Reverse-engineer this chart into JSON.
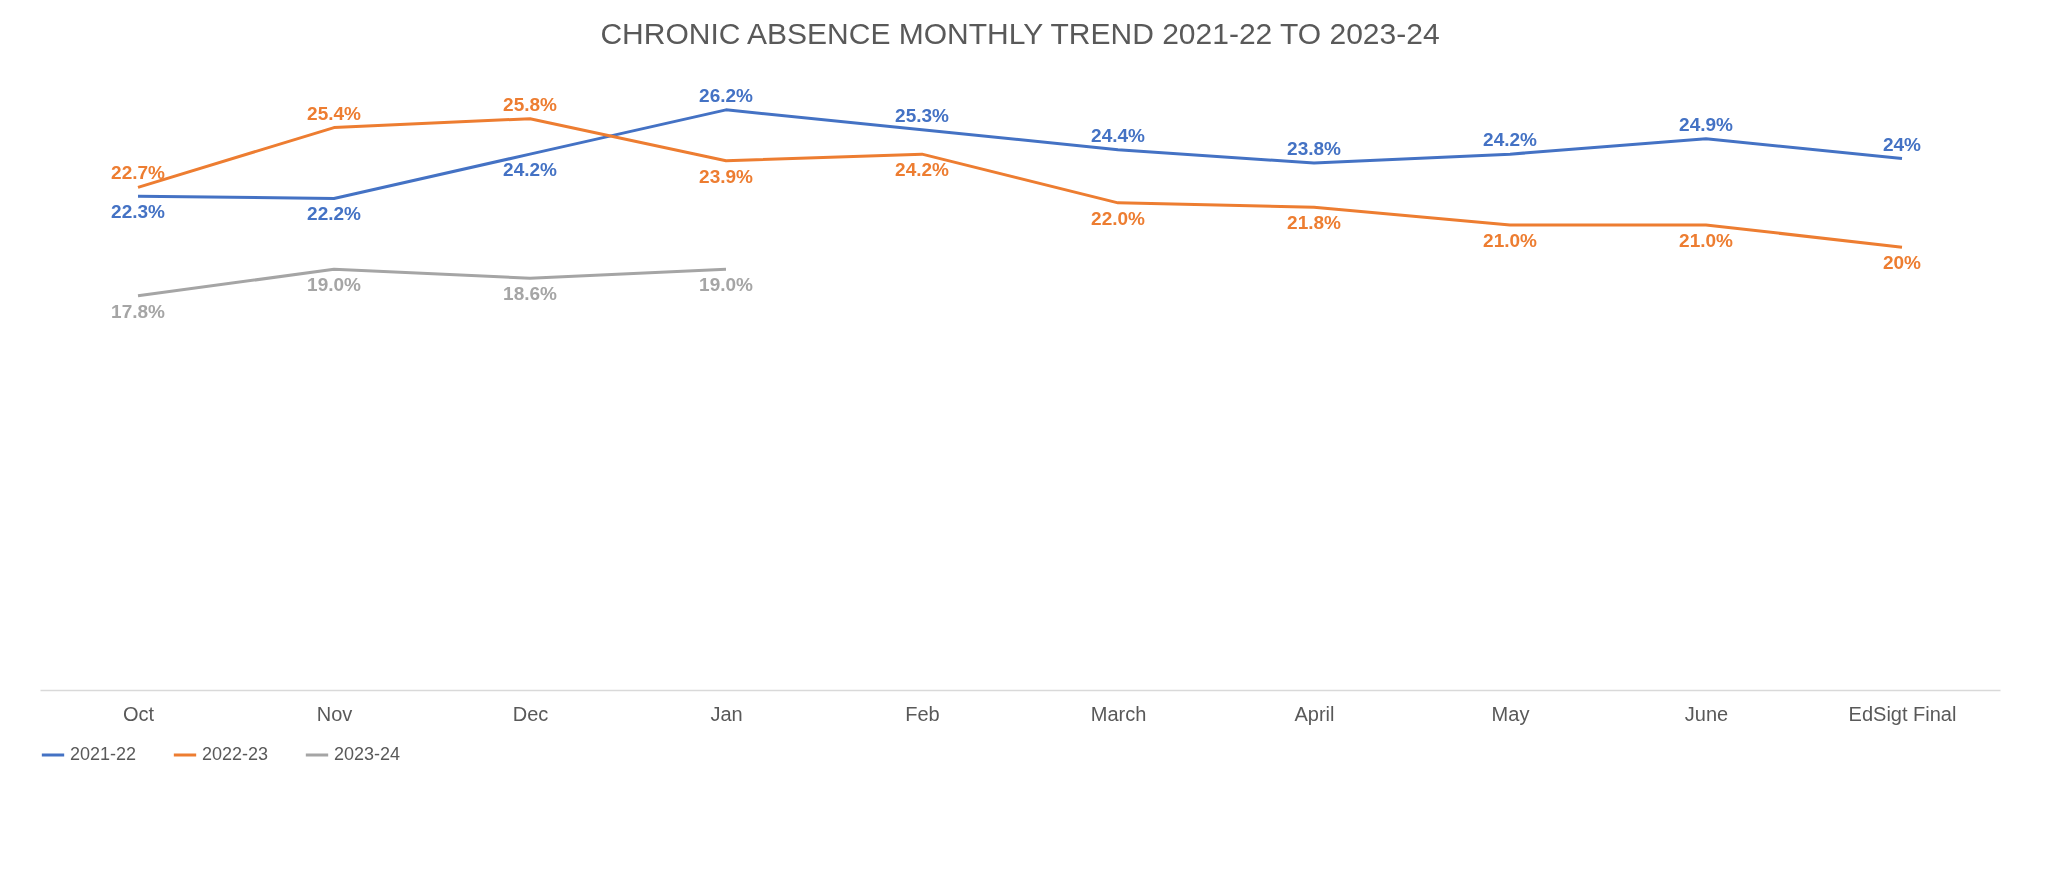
{
  "chart_data": {
    "type": "line",
    "title": "CHRONIC ABSENCE MONTHLY TREND 2021-22 TO 2023-24",
    "categories": [
      "Oct",
      "Nov",
      "Dec",
      "Jan",
      "Feb",
      "March",
      "April",
      "May",
      "June",
      "EdSigt Final"
    ],
    "series": [
      {
        "name": "2021-22",
        "color": "#4472c4",
        "values": [
          22.3,
          22.2,
          24.2,
          26.2,
          25.3,
          24.4,
          23.8,
          24.2,
          24.9,
          24
        ],
        "value_labels": [
          "22.3%",
          "22.2%",
          "24.2%",
          "26.2%",
          "25.3%",
          "24.4%",
          "23.8%",
          "24.2%",
          "24.9%",
          "24%"
        ]
      },
      {
        "name": "2022-23",
        "color": "#ed7d31",
        "values": [
          22.7,
          25.4,
          25.8,
          23.9,
          24.2,
          22.0,
          21.8,
          21.0,
          21.0,
          20
        ],
        "value_labels": [
          "22.7%",
          "25.4%",
          "25.8%",
          "23.9%",
          "24.2%",
          "22.0%",
          "21.8%",
          "21.0%",
          "21.0%",
          "20%"
        ]
      },
      {
        "name": "2023-24",
        "color": "#a5a5a5",
        "values": [
          17.8,
          19.0,
          18.6,
          19.0,
          null,
          null,
          null,
          null,
          null,
          null
        ],
        "value_labels": [
          "17.8%",
          "19.0%",
          "18.6%",
          "19.0%",
          null,
          null,
          null,
          null,
          null,
          null
        ]
      }
    ],
    "legend": "bottom",
    "grid": false,
    "marker": "none",
    "line_style": "solid"
  }
}
